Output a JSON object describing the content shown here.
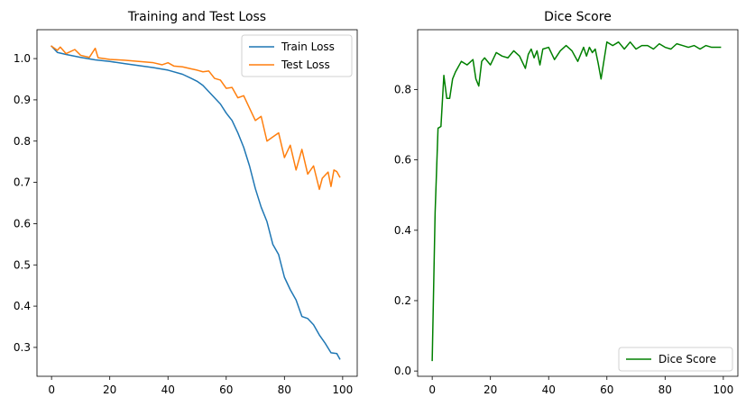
{
  "chart_data": [
    {
      "type": "line",
      "title": "Training and Test Loss",
      "xlabel": "",
      "ylabel": "",
      "xlim": [
        -5,
        105
      ],
      "ylim": [
        0.23,
        1.07
      ],
      "xticks": [
        0,
        20,
        40,
        60,
        80,
        100
      ],
      "yticks": [
        0.3,
        0.4,
        0.5,
        0.6,
        0.7,
        0.8,
        0.9,
        1.0
      ],
      "xtick_labels": [
        "0",
        "20",
        "40",
        "60",
        "80",
        "100"
      ],
      "ytick_labels": [
        "0.3",
        "0.4",
        "0.5",
        "0.6",
        "0.7",
        "0.8",
        "0.9",
        "1.0"
      ],
      "grid": false,
      "legend": "upper-right",
      "series": [
        {
          "name": "Train Loss",
          "color": "#1f77b4",
          "x": [
            0,
            2,
            5,
            10,
            15,
            20,
            25,
            30,
            35,
            40,
            45,
            48,
            50,
            52,
            54,
            56,
            58,
            60,
            62,
            64,
            66,
            68,
            70,
            72,
            74,
            76,
            78,
            80,
            82,
            84,
            86,
            88,
            90,
            92,
            94,
            96,
            98,
            99
          ],
          "values": [
            1.03,
            1.015,
            1.01,
            1.003,
            0.997,
            0.993,
            0.988,
            0.983,
            0.978,
            0.972,
            0.962,
            0.952,
            0.945,
            0.935,
            0.92,
            0.905,
            0.89,
            0.868,
            0.85,
            0.82,
            0.785,
            0.74,
            0.685,
            0.64,
            0.605,
            0.55,
            0.525,
            0.47,
            0.44,
            0.415,
            0.375,
            0.37,
            0.355,
            0.33,
            0.31,
            0.287,
            0.285,
            0.272
          ]
        },
        {
          "name": "Test Loss",
          "color": "#ff7f0e",
          "x": [
            0,
            2,
            3,
            5,
            8,
            10,
            13,
            15,
            16,
            20,
            25,
            30,
            35,
            38,
            40,
            42,
            45,
            48,
            50,
            52,
            54,
            56,
            58,
            60,
            62,
            64,
            66,
            68,
            70,
            72,
            74,
            76,
            78,
            80,
            82,
            84,
            86,
            88,
            90,
            92,
            93,
            95,
            96,
            97,
            98,
            99
          ],
          "values": [
            1.03,
            1.02,
            1.028,
            1.012,
            1.022,
            1.008,
            1.003,
            1.025,
            1.002,
            0.998,
            0.996,
            0.993,
            0.99,
            0.985,
            0.99,
            0.982,
            0.98,
            0.975,
            0.972,
            0.968,
            0.97,
            0.952,
            0.948,
            0.928,
            0.93,
            0.905,
            0.91,
            0.88,
            0.85,
            0.86,
            0.8,
            0.81,
            0.82,
            0.76,
            0.79,
            0.73,
            0.78,
            0.72,
            0.74,
            0.683,
            0.71,
            0.725,
            0.69,
            0.73,
            0.726,
            0.713
          ]
        }
      ]
    },
    {
      "type": "line",
      "title": "Dice Score",
      "xlabel": "",
      "ylabel": "",
      "xlim": [
        -5,
        105
      ],
      "ylim": [
        -0.015,
        0.97
      ],
      "xticks": [
        0,
        20,
        40,
        60,
        80,
        100
      ],
      "yticks": [
        0.0,
        0.2,
        0.4,
        0.6,
        0.8
      ],
      "xtick_labels": [
        "0",
        "20",
        "40",
        "60",
        "80",
        "100"
      ],
      "ytick_labels": [
        "0.0",
        "0.2",
        "0.4",
        "0.6",
        "0.8"
      ],
      "grid": false,
      "legend": "lower-right",
      "series": [
        {
          "name": "Dice Score",
          "color": "#008000",
          "x": [
            0,
            1,
            2,
            3,
            4,
            5,
            6,
            7,
            8,
            10,
            12,
            14,
            15,
            16,
            17,
            18,
            20,
            22,
            24,
            26,
            28,
            30,
            32,
            33,
            34,
            35,
            36,
            37,
            38,
            40,
            42,
            44,
            46,
            48,
            50,
            52,
            53,
            54,
            55,
            56,
            57,
            58,
            60,
            62,
            64,
            66,
            68,
            70,
            72,
            74,
            76,
            78,
            80,
            82,
            84,
            86,
            88,
            90,
            92,
            94,
            96,
            98,
            99
          ],
          "values": [
            0.03,
            0.45,
            0.69,
            0.695,
            0.84,
            0.775,
            0.775,
            0.83,
            0.85,
            0.88,
            0.87,
            0.885,
            0.83,
            0.81,
            0.88,
            0.89,
            0.87,
            0.905,
            0.895,
            0.89,
            0.91,
            0.895,
            0.86,
            0.9,
            0.915,
            0.89,
            0.91,
            0.87,
            0.915,
            0.92,
            0.885,
            0.91,
            0.925,
            0.91,
            0.88,
            0.92,
            0.895,
            0.92,
            0.905,
            0.915,
            0.875,
            0.83,
            0.935,
            0.925,
            0.935,
            0.915,
            0.935,
            0.915,
            0.925,
            0.925,
            0.915,
            0.93,
            0.92,
            0.915,
            0.93,
            0.925,
            0.92,
            0.925,
            0.915,
            0.925,
            0.92,
            0.92,
            0.92
          ]
        }
      ]
    }
  ]
}
